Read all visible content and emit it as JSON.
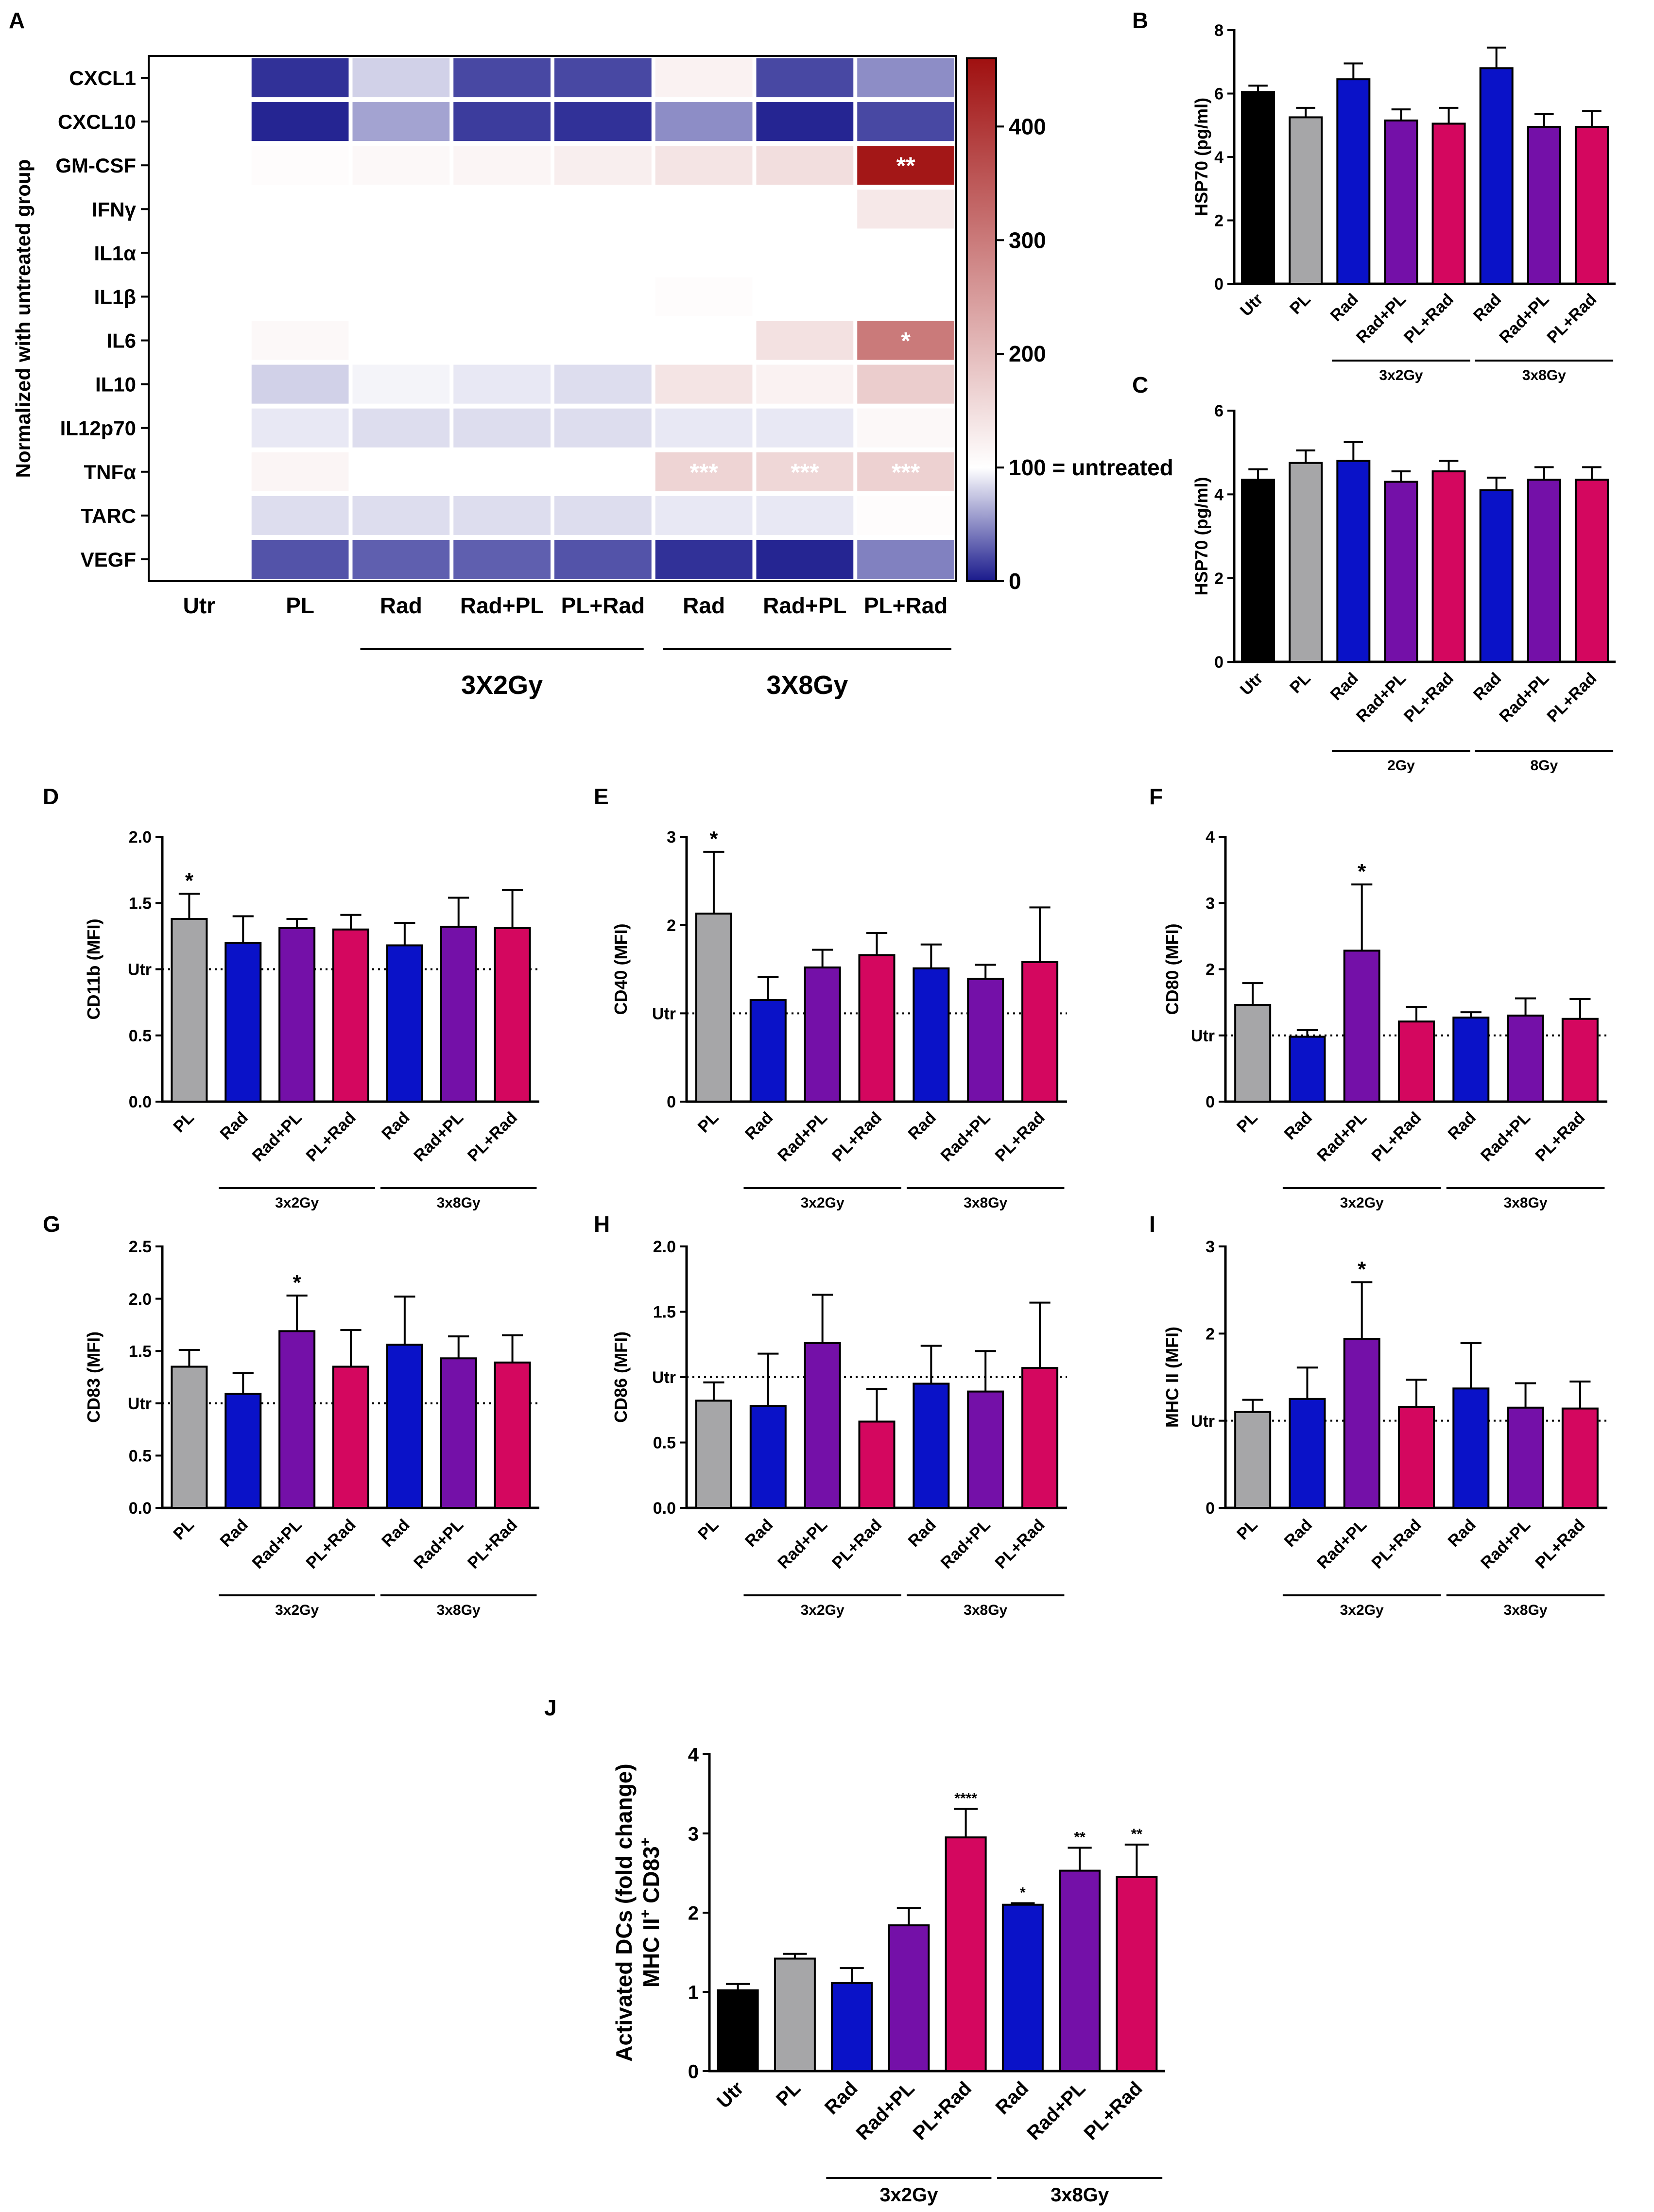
{
  "figure": {
    "panel_labels": [
      "A",
      "B",
      "C",
      "D",
      "E",
      "F",
      "G",
      "H",
      "I",
      "J"
    ]
  },
  "colors": {
    "Utr": "#000000",
    "PL": "#A6A6A8",
    "Rad": "#0A12C8",
    "Rad+PL": "#7410A8",
    "PL+Rad": "#D4075F",
    "heat_low": "#1a1a8c",
    "heat_mid": "#ffffff",
    "heat_high": "#a01010"
  },
  "chart_data": [
    {
      "panel": "A",
      "type": "heatmap",
      "ylabel": "Normalized with untreated group",
      "rows": [
        "CXCL1",
        "CXCL10",
        "GM-CSF",
        "IFNγ",
        "IL1α",
        "IL1β",
        "IL6",
        "IL10",
        "IL12p70",
        "TNFα",
        "TARC",
        "VEGF"
      ],
      "columns": [
        "Utr",
        "PL",
        "Rad",
        "Rad+PL",
        "PL+Rad",
        "Rad",
        "Rad+PL",
        "PL+Rad"
      ],
      "values": [
        [
          100,
          10,
          80,
          20,
          20,
          120,
          20,
          50
        ],
        [
          100,
          5,
          60,
          15,
          10,
          50,
          5,
          20
        ],
        [
          100,
          105,
          110,
          115,
          125,
          140,
          150,
          450
        ],
        [
          100,
          100,
          100,
          100,
          100,
          100,
          100,
          135
        ],
        [
          100,
          100,
          100,
          100,
          100,
          100,
          100,
          100
        ],
        [
          100,
          100,
          100,
          100,
          100,
          105,
          100,
          100
        ],
        [
          100,
          110,
          100,
          100,
          100,
          100,
          145,
          300
        ],
        [
          100,
          80,
          95,
          90,
          85,
          140,
          120,
          175
        ],
        [
          100,
          90,
          85,
          85,
          85,
          90,
          90,
          110
        ],
        [
          100,
          115,
          100,
          100,
          100,
          165,
          160,
          170
        ],
        [
          100,
          85,
          85,
          85,
          85,
          90,
          90,
          105
        ],
        [
          100,
          25,
          30,
          30,
          25,
          10,
          5,
          45
        ]
      ],
      "annotations": [
        {
          "row": 2,
          "col": 7,
          "text": "**"
        },
        {
          "row": 6,
          "col": 7,
          "text": "*"
        },
        {
          "row": 9,
          "col": 5,
          "text": "***"
        },
        {
          "row": 9,
          "col": 6,
          "text": "***"
        },
        {
          "row": 9,
          "col": 7,
          "text": "***"
        }
      ],
      "colorbar": {
        "range": [
          0,
          460
        ],
        "ticks": [
          0,
          100,
          200,
          300,
          400
        ],
        "tick_labels": [
          "0",
          "100 = untreated",
          "200",
          "300",
          "400"
        ]
      },
      "groups": [
        "3X2Gy",
        "3X8Gy"
      ]
    },
    {
      "panel": "B",
      "type": "bar",
      "ylabel": "HSP70 (pg/ml)",
      "ylim": [
        0,
        8
      ],
      "yticks": [
        "0",
        "2",
        "4",
        "6",
        "8"
      ],
      "categories": [
        "Utr",
        "PL",
        "Rad",
        "Rad+PL",
        "PL+Rad",
        "Rad",
        "Rad+PL",
        "PL+Rad"
      ],
      "values": [
        6.05,
        5.25,
        6.45,
        5.15,
        5.05,
        6.8,
        4.95,
        4.95
      ],
      "errors": [
        0.2,
        0.3,
        0.5,
        0.35,
        0.5,
        0.65,
        0.4,
        0.5
      ],
      "groups": [
        "3x2Gy",
        "3x8Gy"
      ]
    },
    {
      "panel": "C",
      "type": "bar",
      "ylabel": "HSP70 (pg/ml)",
      "ylim": [
        0,
        6
      ],
      "yticks": [
        "0",
        "2",
        "4",
        "6"
      ],
      "categories": [
        "Utr",
        "PL",
        "Rad",
        "Rad+PL",
        "PL+Rad",
        "Rad",
        "Rad+PL",
        "PL+Rad"
      ],
      "values": [
        4.35,
        4.75,
        4.8,
        4.3,
        4.55,
        4.1,
        4.35,
        4.35
      ],
      "errors": [
        0.25,
        0.3,
        0.45,
        0.25,
        0.25,
        0.3,
        0.3,
        0.3
      ],
      "groups": [
        "2Gy",
        "8Gy"
      ]
    },
    {
      "panel": "D",
      "type": "bar",
      "ylabel": "CD11b (MFI)",
      "ylim": [
        0,
        2
      ],
      "yticks": [
        "0.0",
        "0.5",
        "Utr",
        "1.5",
        "2.0"
      ],
      "ref": 1,
      "categories": [
        "PL",
        "Rad",
        "Rad+PL",
        "PL+Rad",
        "Rad",
        "Rad+PL",
        "PL+Rad"
      ],
      "values": [
        1.38,
        1.2,
        1.31,
        1.3,
        1.18,
        1.32,
        1.31
      ],
      "errors": [
        0.19,
        0.2,
        0.07,
        0.11,
        0.17,
        0.22,
        0.29
      ],
      "stars": [
        "*",
        "",
        "",
        "",
        "",
        "",
        ""
      ],
      "groups": [
        "3x2Gy",
        "3x8Gy"
      ]
    },
    {
      "panel": "E",
      "type": "bar",
      "ylabel": "CD40 (MFI)",
      "ylim": [
        0,
        3
      ],
      "yticks": [
        "0",
        "Utr",
        "2",
        "3"
      ],
      "ref": 1,
      "categories": [
        "PL",
        "Rad",
        "Rad+PL",
        "PL+Rad",
        "Rad",
        "Rad+PL",
        "PL+Rad"
      ],
      "values": [
        2.13,
        1.15,
        1.52,
        1.66,
        1.51,
        1.39,
        1.58
      ],
      "errors": [
        0.7,
        0.26,
        0.2,
        0.25,
        0.27,
        0.16,
        0.62
      ],
      "stars": [
        "*",
        "",
        "",
        "",
        "",
        "",
        ""
      ],
      "groups": [
        "3x2Gy",
        "3x8Gy"
      ]
    },
    {
      "panel": "F",
      "type": "bar",
      "ylabel": "CD80 (MFI)",
      "ylim": [
        0,
        4
      ],
      "yticks": [
        "0",
        "Utr",
        "2",
        "3",
        "4"
      ],
      "ref": 1,
      "categories": [
        "PL",
        "Rad",
        "Rad+PL",
        "PL+Rad",
        "Rad",
        "Rad+PL",
        "PL+Rad"
      ],
      "values": [
        1.46,
        0.98,
        2.28,
        1.21,
        1.27,
        1.3,
        1.25
      ],
      "errors": [
        0.33,
        0.1,
        1.0,
        0.22,
        0.08,
        0.26,
        0.3
      ],
      "stars": [
        "",
        "",
        "*",
        "",
        "",
        "",
        ""
      ],
      "groups": [
        "3x2Gy",
        "3x8Gy"
      ]
    },
    {
      "panel": "G",
      "type": "bar",
      "ylabel": "CD83 (MFI)",
      "ylim": [
        0,
        2.5
      ],
      "yticks": [
        "0.0",
        "0.5",
        "Utr",
        "1.5",
        "2.0",
        "2.5"
      ],
      "ref": 1,
      "categories": [
        "PL",
        "Rad",
        "Rad+PL",
        "PL+Rad",
        "Rad",
        "Rad+PL",
        "PL+Rad"
      ],
      "values": [
        1.35,
        1.09,
        1.69,
        1.35,
        1.56,
        1.43,
        1.39
      ],
      "errors": [
        0.16,
        0.2,
        0.34,
        0.35,
        0.46,
        0.21,
        0.26
      ],
      "stars": [
        "",
        "",
        "*",
        "",
        "",
        "",
        ""
      ],
      "groups": [
        "3x2Gy",
        "3x8Gy"
      ]
    },
    {
      "panel": "H",
      "type": "bar",
      "ylabel": "CD86 (MFI)",
      "ylim": [
        0,
        2
      ],
      "yticks": [
        "0.0",
        "0.5",
        "Utr",
        "1.5",
        "2.0"
      ],
      "ref": 1,
      "categories": [
        "PL",
        "Rad",
        "Rad+PL",
        "PL+Rad",
        "Rad",
        "Rad+PL",
        "PL+Rad"
      ],
      "values": [
        0.82,
        0.78,
        1.26,
        0.66,
        0.95,
        0.89,
        1.07
      ],
      "errors": [
        0.14,
        0.4,
        0.37,
        0.25,
        0.29,
        0.31,
        0.5
      ],
      "stars": [
        "",
        "",
        "",
        "",
        "",
        "",
        ""
      ],
      "groups": [
        "3x2Gy",
        "3x8Gy"
      ]
    },
    {
      "panel": "I",
      "type": "bar",
      "ylabel": "MHC II (MFI)",
      "ylim": [
        0,
        3
      ],
      "yticks": [
        "0",
        "Utr",
        "2",
        "3"
      ],
      "ref": 1,
      "categories": [
        "PL",
        "Rad",
        "Rad+PL",
        "PL+Rad",
        "Rad",
        "Rad+PL",
        "PL+Rad"
      ],
      "values": [
        1.1,
        1.25,
        1.94,
        1.16,
        1.37,
        1.15,
        1.14
      ],
      "errors": [
        0.14,
        0.36,
        0.65,
        0.31,
        0.52,
        0.28,
        0.31
      ],
      "stars": [
        "",
        "",
        "*",
        "",
        "",
        "",
        ""
      ],
      "groups": [
        "3x2Gy",
        "3x8Gy"
      ]
    },
    {
      "panel": "J",
      "type": "bar",
      "ylabel_line1": "Activated DCs (fold change)",
      "ylabel_line2_main": "MHC II",
      "ylabel_line2_sup1": "+",
      "ylabel_line2_mid": " CD83",
      "ylabel_line2_sup2": "+",
      "ylim": [
        0,
        4
      ],
      "yticks": [
        "0",
        "1",
        "2",
        "3",
        "4"
      ],
      "categories": [
        "Utr",
        "PL",
        "Rad",
        "Rad+PL",
        "PL+Rad",
        "Rad",
        "Rad+PL",
        "PL+Rad"
      ],
      "values": [
        1.02,
        1.42,
        1.11,
        1.84,
        2.95,
        2.1,
        2.53,
        2.45
      ],
      "errors": [
        0.08,
        0.06,
        0.19,
        0.22,
        0.36,
        0.02,
        0.29,
        0.41
      ],
      "stars": [
        "",
        "",
        "",
        "",
        "****",
        "*",
        "**",
        "**"
      ],
      "groups": [
        "3x2Gy",
        "3x8Gy"
      ]
    }
  ]
}
